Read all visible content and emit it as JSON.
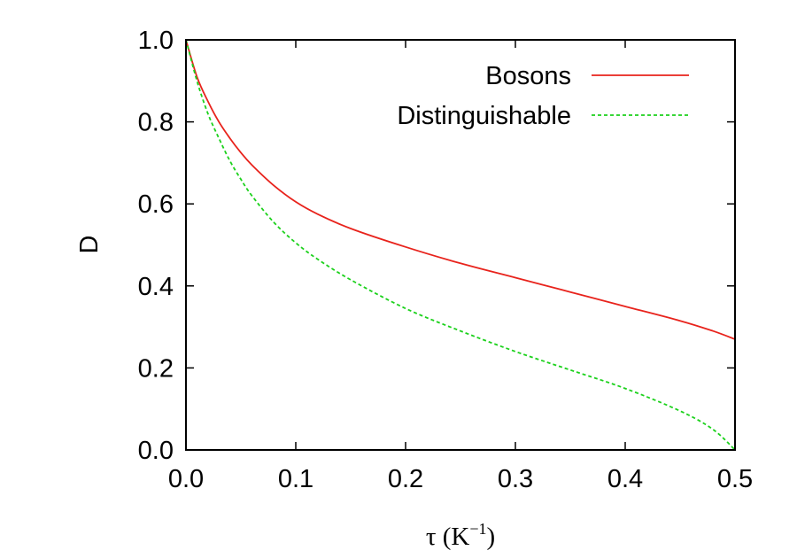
{
  "chart_data": {
    "type": "line",
    "xlabel": "τ (K",
    "xlabel_exp": "−1",
    "xlabel_close": ")",
    "ylabel": "D",
    "xlim": [
      0,
      0.5
    ],
    "ylim": [
      0,
      1
    ],
    "x_ticks": [
      "0.0",
      "0.1",
      "0.2",
      "0.3",
      "0.4",
      "0.5"
    ],
    "y_ticks": [
      "0.0",
      "0.2",
      "0.4",
      "0.6",
      "0.8",
      "1.0"
    ],
    "legend_position": "top-right",
    "grid": false,
    "series": [
      {
        "name": "Bosons",
        "color": "#e8231c",
        "dash": "solid",
        "x": [
          0.0,
          0.01,
          0.02,
          0.03,
          0.04,
          0.05,
          0.06,
          0.08,
          0.1,
          0.12,
          0.15,
          0.2,
          0.25,
          0.3,
          0.35,
          0.4,
          0.45,
          0.48,
          0.5
        ],
        "y": [
          1.0,
          0.91,
          0.85,
          0.8,
          0.76,
          0.725,
          0.695,
          0.645,
          0.605,
          0.575,
          0.54,
          0.495,
          0.455,
          0.42,
          0.385,
          0.35,
          0.315,
          0.29,
          0.27
        ]
      },
      {
        "name": "Distinguishable",
        "color": "#1cd11c",
        "dash": "dashed",
        "x": [
          0.0,
          0.01,
          0.02,
          0.03,
          0.04,
          0.05,
          0.06,
          0.08,
          0.1,
          0.12,
          0.15,
          0.2,
          0.25,
          0.3,
          0.35,
          0.4,
          0.45,
          0.48,
          0.5
        ],
        "y": [
          1.0,
          0.9,
          0.82,
          0.76,
          0.705,
          0.66,
          0.62,
          0.555,
          0.505,
          0.465,
          0.415,
          0.345,
          0.29,
          0.24,
          0.195,
          0.15,
          0.095,
          0.05,
          0.0
        ]
      }
    ]
  }
}
